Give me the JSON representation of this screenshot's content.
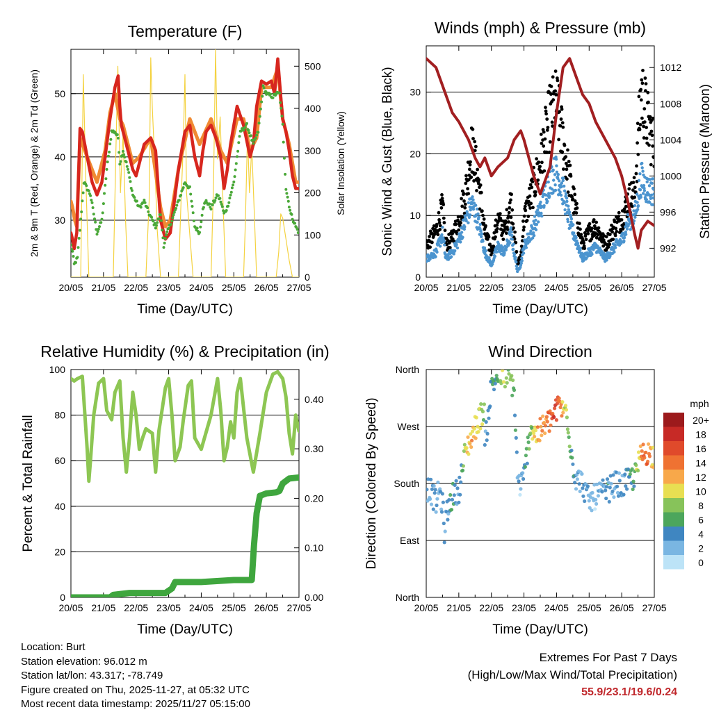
{
  "x_ticks": [
    "20/05",
    "21/05",
    "22/05",
    "23/05",
    "24/05",
    "25/05",
    "26/05",
    "27/05"
  ],
  "chart_data": [
    {
      "id": "temperature",
      "type": "line",
      "title": "Temperature (F)",
      "xlabel": "Time (Day/UTC)",
      "ylabel": "2m & 9m T (Red, Orange) & 2m Td (Green)",
      "ylabel_right": "Solar Insolation (Yellow)",
      "ylim": [
        21,
        57
      ],
      "yticks": [
        30,
        40,
        50
      ],
      "ylim_right": [
        0,
        540
      ],
      "yticks_right": [
        0,
        100,
        200,
        300,
        400,
        500
      ],
      "x_days": [
        0,
        7
      ],
      "series": [
        {
          "name": "2m T",
          "color": "#d7261e",
          "x": [
            0,
            0.05,
            0.1,
            0.18,
            0.28,
            0.35,
            0.5,
            0.65,
            0.8,
            0.95,
            1.05,
            1.2,
            1.35,
            1.45,
            1.5,
            1.55,
            1.6,
            1.75,
            1.9,
            2.0,
            2.1,
            2.25,
            2.45,
            2.6,
            2.75,
            2.9,
            3.05,
            3.15,
            3.3,
            3.5,
            3.65,
            3.8,
            3.95,
            4.05,
            4.15,
            4.3,
            4.45,
            4.6,
            4.7,
            4.8,
            4.9,
            5.0,
            5.1,
            5.3,
            5.5,
            5.6,
            5.7,
            5.85,
            6.0,
            6.15,
            6.25,
            6.35,
            6.45,
            6.5,
            6.6,
            6.7,
            6.8,
            6.9,
            7.0
          ],
          "values": [
            28,
            27,
            25.5,
            28,
            44.5,
            44,
            40,
            36,
            34,
            36,
            40,
            46,
            51,
            52.8,
            48,
            45,
            44,
            41,
            38,
            37,
            39,
            42,
            43,
            41,
            30,
            27,
            28,
            32,
            38,
            44,
            45,
            40,
            37,
            41,
            44,
            45,
            43,
            40,
            35,
            38,
            42,
            45,
            48,
            45,
            40,
            42,
            48,
            52,
            51.5,
            52,
            50,
            55.5,
            49,
            46,
            44,
            41,
            37,
            35,
            35
          ]
        },
        {
          "name": "9m T",
          "color": "#f08a33",
          "x": [
            0,
            0.05,
            0.12,
            0.18,
            0.28,
            0.5,
            0.8,
            1.05,
            1.2,
            1.35,
            1.5,
            1.6,
            1.9,
            2.1,
            2.45,
            2.75,
            2.9,
            3.05,
            3.3,
            3.65,
            3.95,
            4.3,
            4.6,
            4.8,
            5.1,
            5.3,
            5.5,
            5.7,
            5.85,
            6.0,
            6.15,
            6.35,
            6.5,
            6.7,
            6.9,
            7.0
          ],
          "values": [
            33,
            32,
            30,
            29,
            43,
            40,
            36,
            41,
            47,
            50,
            46,
            45,
            39,
            40,
            43,
            32,
            29,
            30,
            38,
            46,
            42,
            46,
            41,
            39,
            46,
            46,
            41,
            43,
            51,
            51,
            51,
            54,
            46,
            42,
            36,
            36
          ]
        },
        {
          "name": "2m Td",
          "color": "#4aa838",
          "x": [
            0,
            0.05,
            0.1,
            0.2,
            0.4,
            0.6,
            0.8,
            0.95,
            1.1,
            1.25,
            1.35,
            1.45,
            1.5,
            1.6,
            1.75,
            1.9,
            2.1,
            2.25,
            2.4,
            2.6,
            2.75,
            2.85,
            2.95,
            3.1,
            3.3,
            3.5,
            3.65,
            3.8,
            3.95,
            4.05,
            4.15,
            4.3,
            4.5,
            4.6,
            4.7,
            4.8,
            4.9,
            5.0,
            5.2,
            5.4,
            5.6,
            5.75,
            5.9,
            6.0,
            6.2,
            6.3,
            6.4,
            6.5,
            6.6,
            6.75,
            6.9,
            7.0
          ],
          "values": [
            26,
            25,
            23,
            24,
            36,
            34,
            28,
            30,
            38,
            44,
            44,
            43,
            39,
            41,
            38,
            34,
            32,
            33,
            31,
            29,
            31,
            26,
            28,
            30,
            33,
            36,
            35,
            29,
            28,
            32,
            33,
            32,
            34,
            33,
            31,
            32,
            34,
            36,
            44,
            45,
            42,
            44,
            51,
            50,
            49.5,
            50,
            50,
            45,
            35,
            31,
            29,
            28
          ]
        },
        {
          "name": "Solar",
          "color": "#f4d240",
          "axis": "right",
          "x": [
            0,
            0.3,
            0.38,
            0.45,
            0.55,
            1.0,
            1.3,
            1.38,
            1.44,
            1.52,
            1.6,
            1.68,
            1.75,
            2.0,
            2.3,
            2.4,
            2.45,
            2.5,
            2.58,
            2.65,
            2.75,
            3.0,
            3.3,
            3.38,
            3.45,
            3.5,
            3.55,
            3.65,
            3.75,
            4.0,
            4.3,
            4.38,
            4.44,
            4.5,
            4.58,
            4.68,
            4.75,
            5.0,
            5.3,
            5.35,
            5.42,
            5.48,
            5.55,
            5.62,
            5.7,
            6.0,
            6.3,
            6.38,
            6.44,
            6.5,
            6.6,
            6.7,
            6.8,
            7.0
          ],
          "values": [
            0,
            0,
            480,
            250,
            0,
            0,
            0,
            300,
            500,
            200,
            340,
            130,
            0,
            0,
            0,
            180,
            520,
            400,
            260,
            110,
            0,
            0,
            0,
            180,
            320,
            480,
            200,
            100,
            0,
            0,
            0,
            230,
            540,
            280,
            380,
            150,
            0,
            0,
            0,
            120,
            340,
            200,
            310,
            170,
            0,
            0,
            0,
            60,
            150,
            140,
            90,
            40,
            0,
            0
          ]
        }
      ]
    },
    {
      "id": "winds",
      "type": "scatter",
      "title": "Winds (mph) & Pressure (mb)",
      "xlabel": "Time (Day/UTC)",
      "ylabel": "Sonic Wind & Gust (Blue, Black)",
      "ylabel_right": "Station Pressure (Maroon)",
      "ylim": [
        0,
        37.5
      ],
      "yticks": [
        0,
        10,
        20,
        30
      ],
      "ylim_right": [
        988.8,
        1014.4
      ],
      "yticks_right": [
        992,
        996,
        1000,
        1004,
        1008,
        1012
      ],
      "x_days": [
        0,
        7
      ],
      "series": [
        {
          "name": "Sonic Wind",
          "color": "#4b94cf",
          "x": [
            0,
            0.3,
            0.5,
            0.6,
            0.8,
            1.0,
            1.2,
            1.4,
            1.6,
            1.8,
            2.0,
            2.2,
            2.4,
            2.6,
            2.8,
            2.9,
            3.0,
            3.3,
            3.5,
            3.8,
            4.0,
            4.2,
            4.4,
            4.6,
            4.8,
            5.0,
            5.2,
            5.5,
            5.8,
            6.0,
            6.2,
            6.4,
            6.6,
            6.8,
            7.0
          ],
          "values": [
            3,
            4,
            7,
            3,
            4,
            6,
            9,
            12,
            9,
            4,
            2,
            5,
            4,
            7,
            1,
            2,
            5,
            8,
            11,
            16,
            17,
            14,
            9,
            6,
            3,
            4,
            5,
            3,
            5,
            6,
            9,
            10,
            16,
            14,
            14
          ]
        },
        {
          "name": "Gust",
          "color": "#000000",
          "x": [
            0,
            0.3,
            0.5,
            0.6,
            0.8,
            1.0,
            1.2,
            1.4,
            1.6,
            1.8,
            2.0,
            2.2,
            2.4,
            2.6,
            2.8,
            2.9,
            3.0,
            3.3,
            3.5,
            3.8,
            4.0,
            4.2,
            4.4,
            4.6,
            4.8,
            5.0,
            5.2,
            5.5,
            5.8,
            6.0,
            6.2,
            6.4,
            6.6,
            6.8,
            7.0
          ],
          "values": [
            5,
            7,
            11,
            5,
            6,
            9,
            13,
            20,
            15,
            7,
            4,
            9,
            7,
            12,
            2,
            3,
            9,
            14,
            18,
            25,
            27,
            21,
            15,
            10,
            5,
            7,
            8,
            5,
            8,
            9,
            12,
            13,
            29,
            24,
            20
          ]
        },
        {
          "name": "Station Pressure",
          "color": "#a21f21",
          "axis": "right",
          "x": [
            0,
            0.3,
            0.6,
            0.8,
            1.0,
            1.3,
            1.5,
            1.65,
            1.8,
            2.0,
            2.2,
            2.5,
            2.7,
            2.9,
            3.0,
            3.3,
            3.5,
            3.8,
            4.0,
            4.2,
            4.4,
            4.6,
            4.8,
            5.0,
            5.2,
            5.5,
            5.8,
            6.0,
            6.2,
            6.4,
            6.5,
            6.6,
            6.8,
            7.0
          ],
          "values": [
            1013,
            1012,
            1009,
            1007,
            1006,
            1004,
            1002,
            1001,
            1002,
            1000,
            1001,
            1002,
            1004,
            1005,
            1004,
            1000,
            998,
            1001,
            1007,
            1012,
            1013,
            1011,
            1009,
            1008,
            1006,
            1004,
            1002,
            1000,
            997,
            993.5,
            992,
            994,
            995,
            994.5
          ]
        }
      ]
    },
    {
      "id": "humidity",
      "type": "line",
      "title": "Relative Humidity (%) & Precipitation (in)",
      "xlabel": "Time (Day/UTC)",
      "ylabel": "Percent & Total Rainfall",
      "ylim": [
        0,
        100
      ],
      "yticks": [
        0,
        20,
        40,
        60,
        80,
        100
      ],
      "ylim_right": [
        0,
        0.46
      ],
      "yticks_right": [
        "0.00",
        "0.10",
        "0.20",
        "0.30",
        "0.40"
      ],
      "x_days": [
        0,
        7
      ],
      "series": [
        {
          "name": "Relative Humidity",
          "color": "#8dc653",
          "x": [
            0,
            0.1,
            0.2,
            0.35,
            0.5,
            0.55,
            0.6,
            0.7,
            0.85,
            1.0,
            1.1,
            1.25,
            1.35,
            1.5,
            1.6,
            1.7,
            1.8,
            1.9,
            2.0,
            2.1,
            2.2,
            2.3,
            2.5,
            2.6,
            2.7,
            2.9,
            3.0,
            3.1,
            3.2,
            3.35,
            3.45,
            3.6,
            3.7,
            3.8,
            4.0,
            4.2,
            4.3,
            4.5,
            4.6,
            4.7,
            4.8,
            4.9,
            5.0,
            5.1,
            5.2,
            5.4,
            5.6,
            5.8,
            6.0,
            6.2,
            6.35,
            6.5,
            6.6,
            6.7,
            6.8,
            6.9,
            7.0
          ],
          "values": [
            96,
            95,
            96,
            97,
            65,
            51,
            60,
            80,
            94,
            96,
            82,
            78,
            90,
            95,
            70,
            55,
            70,
            90,
            80,
            65,
            70,
            74,
            72,
            55,
            73,
            92,
            96,
            80,
            60,
            66,
            78,
            93,
            95,
            70,
            65,
            75,
            80,
            96,
            82,
            60,
            66,
            77,
            70,
            90,
            96,
            70,
            55,
            72,
            90,
            98,
            99,
            96,
            88,
            72,
            63,
            80,
            73
          ]
        },
        {
          "name": "Total Rainfall",
          "color": "#3fa63e",
          "axis": "right",
          "x": [
            0,
            1.2,
            1.3,
            1.8,
            2.9,
            3.1,
            3.2,
            4.0,
            5.0,
            5.3,
            5.55,
            5.62,
            5.7,
            5.8,
            6.0,
            6.3,
            6.4,
            6.5,
            6.7,
            7.0
          ],
          "values": [
            0,
            0,
            0.005,
            0.009,
            0.009,
            0.018,
            0.031,
            0.031,
            0.035,
            0.035,
            0.035,
            0.105,
            0.17,
            0.205,
            0.21,
            0.212,
            0.215,
            0.23,
            0.24,
            0.242
          ]
        }
      ]
    },
    {
      "id": "wind_direction",
      "type": "scatter",
      "title": "Wind Direction",
      "xlabel": "Time (Day/UTC)",
      "ylabel": "Direction (Colored By Speed)",
      "y_labels": [
        "North",
        "East",
        "South",
        "West",
        "North"
      ],
      "ylim": [
        0,
        360
      ],
      "x_days": [
        0,
        7
      ],
      "colorbar_title": "mph",
      "colorbar_labels": [
        "20+",
        "18",
        "16",
        "14",
        "12",
        "10",
        "8",
        "6",
        "4",
        "2",
        "0"
      ],
      "colorbar_colors": [
        "#9c1a1c",
        "#c72a26",
        "#e04a2b",
        "#ef7232",
        "#f8a84a",
        "#e8df52",
        "#87c35a",
        "#4ca65c",
        "#3f86c1",
        "#7ab6e2",
        "#bce3f7"
      ],
      "points": {
        "x": [
          0.1,
          0.3,
          0.4,
          0.5,
          0.6,
          0.6,
          0.55,
          0.8,
          1.0,
          1.1,
          1.2,
          1.4,
          1.6,
          1.8,
          1.7,
          2.0,
          2.2,
          2.4,
          2.6,
          2.7,
          2.8,
          2.9,
          3.0,
          3.2,
          3.4,
          3.6,
          3.8,
          4.0,
          4.1,
          4.2,
          4.3,
          4.5,
          4.6,
          4.8,
          5.0,
          5.2,
          5.4,
          5.6,
          5.8,
          6.0,
          6.2,
          6.4,
          6.6,
          6.8,
          6.9
        ],
        "values": [
          172,
          150,
          170,
          145,
          80,
          25,
          120,
          160,
          170,
          200,
          230,
          255,
          280,
          300,
          190,
          335,
          350,
          350,
          345,
          325,
          190,
          175,
          190,
          270,
          255,
          270,
          280,
          295,
          310,
          290,
          300,
          210,
          190,
          180,
          150,
          160,
          165,
          170,
          180,
          175,
          185,
          190,
          225,
          230,
          225
        ],
        "speeds": [
          4,
          4,
          3,
          5,
          4,
          8,
          4,
          6,
          4,
          8,
          10,
          13,
          11,
          8,
          3,
          6,
          8,
          10,
          8,
          7,
          4,
          2,
          6,
          8,
          13,
          14,
          16,
          18,
          15,
          12,
          10,
          6,
          4,
          3,
          4,
          3,
          4,
          5,
          4,
          4,
          6,
          7,
          14,
          16,
          12
        ]
      }
    }
  ],
  "footer": {
    "location": "Location: Burt",
    "elevation": "Station elevation: 96.012 m",
    "latlon": "Station lat/lon: 43.317; -78.749",
    "created": "Figure created on Thu, 2025-11-27, at 05:32 UTC",
    "recent": "Most recent data timestamp: 2025/11/27 05:15:00",
    "extremes_title": "Extremes For Past 7 Days",
    "extremes_subtitle": "(High/Low/Max Wind/Total Precipitation)",
    "extremes_values": "55.9/23.1/19.6/0.24"
  }
}
